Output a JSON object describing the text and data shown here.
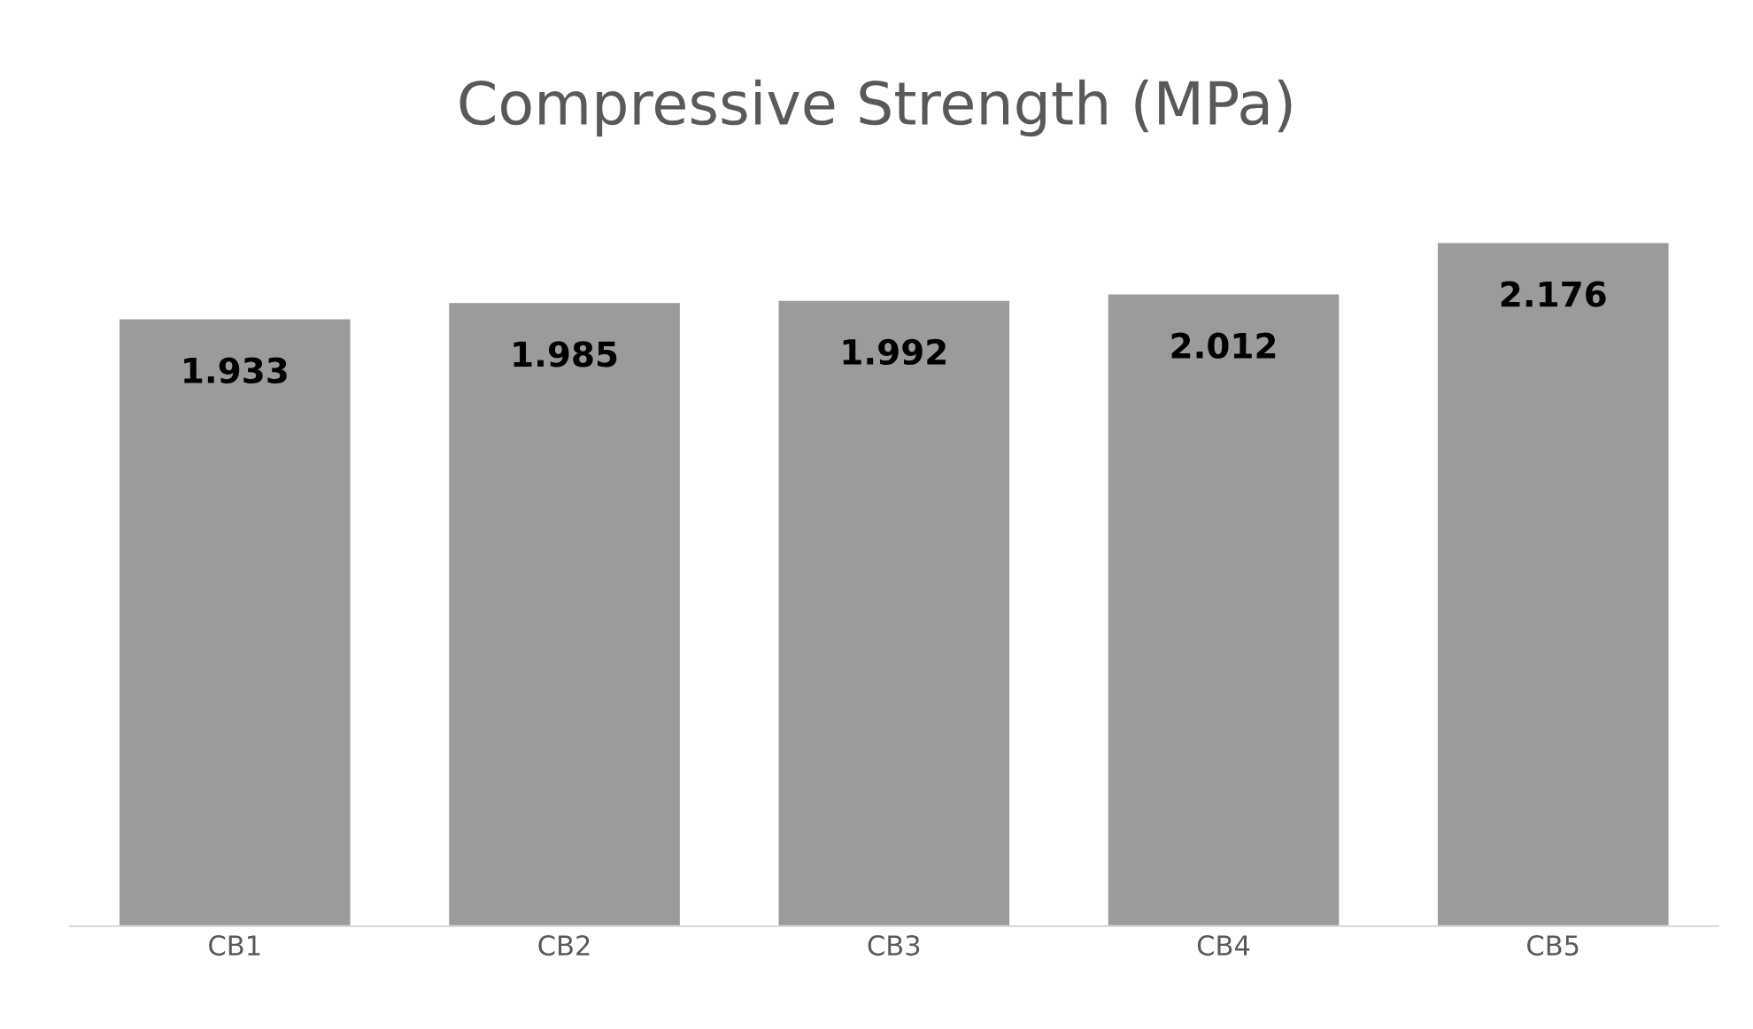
{
  "chart_data": {
    "type": "bar",
    "title": "Compressive Strength (MPa)",
    "categories": [
      "CB1",
      "CB2",
      "CB3",
      "CB4",
      "CB5"
    ],
    "values": [
      1.933,
      1.985,
      1.992,
      2.012,
      2.176
    ],
    "color": "#9b9b9b",
    "data_labels": true,
    "tick_labels": "x"
  }
}
